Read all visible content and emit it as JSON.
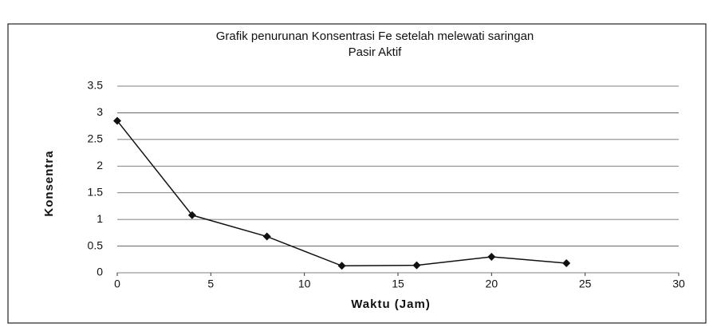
{
  "chart_data": {
    "type": "line",
    "title": [
      "Grafik penurunan Konsentrasi Fe setelah melewati saringan",
      "Pasir Aktif"
    ],
    "x_label": "Waktu (Jam)",
    "y_label": "Konsentra",
    "x": [
      0,
      4,
      8,
      12,
      16,
      20,
      24
    ],
    "series": [
      {
        "color": "#111111",
        "values": [
          2.85,
          1.08,
          0.68,
          0.13,
          0.14,
          0.3,
          0.18
        ]
      }
    ],
    "xlim": [
      0,
      30
    ],
    "xticks": [
      0,
      5,
      10,
      15,
      20,
      25,
      30
    ],
    "ylim": [
      0,
      3.5
    ],
    "yticks": [
      0,
      0.5,
      1,
      1.5,
      2,
      2.5,
      3,
      3.5
    ],
    "grid": true
  }
}
